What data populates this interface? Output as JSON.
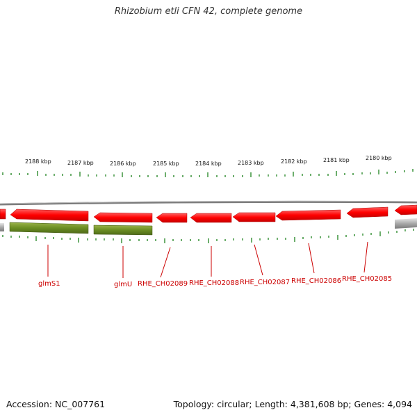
{
  "title": "Rhizobium etli CFN 42, complete genome",
  "footer": {
    "accession": "Accession: NC_007761",
    "summary": "Topology: circular; Length: 4,381,608 bp; Genes: 4,094"
  },
  "colors": {
    "gene_forward": "#ff1a1a",
    "gene_rna": "#6b8e23",
    "backbone": "#888888",
    "ticks": "#2e8b2e",
    "label": "#cc0000"
  },
  "scale": {
    "ticks": [
      "2188 kbp",
      "2187 kbp",
      "2186 kbp",
      "2185 kbp",
      "2184 kbp",
      "2183 kbp",
      "2182 kbp",
      "2181 kbp",
      "2180 kbp"
    ]
  },
  "genes": [
    "glmS1",
    "glmU",
    "RHE_CH02089",
    "RHE_CH02088",
    "RHE_CH02087",
    "RHE_CH02086",
    "RHE_CH02085"
  ]
}
